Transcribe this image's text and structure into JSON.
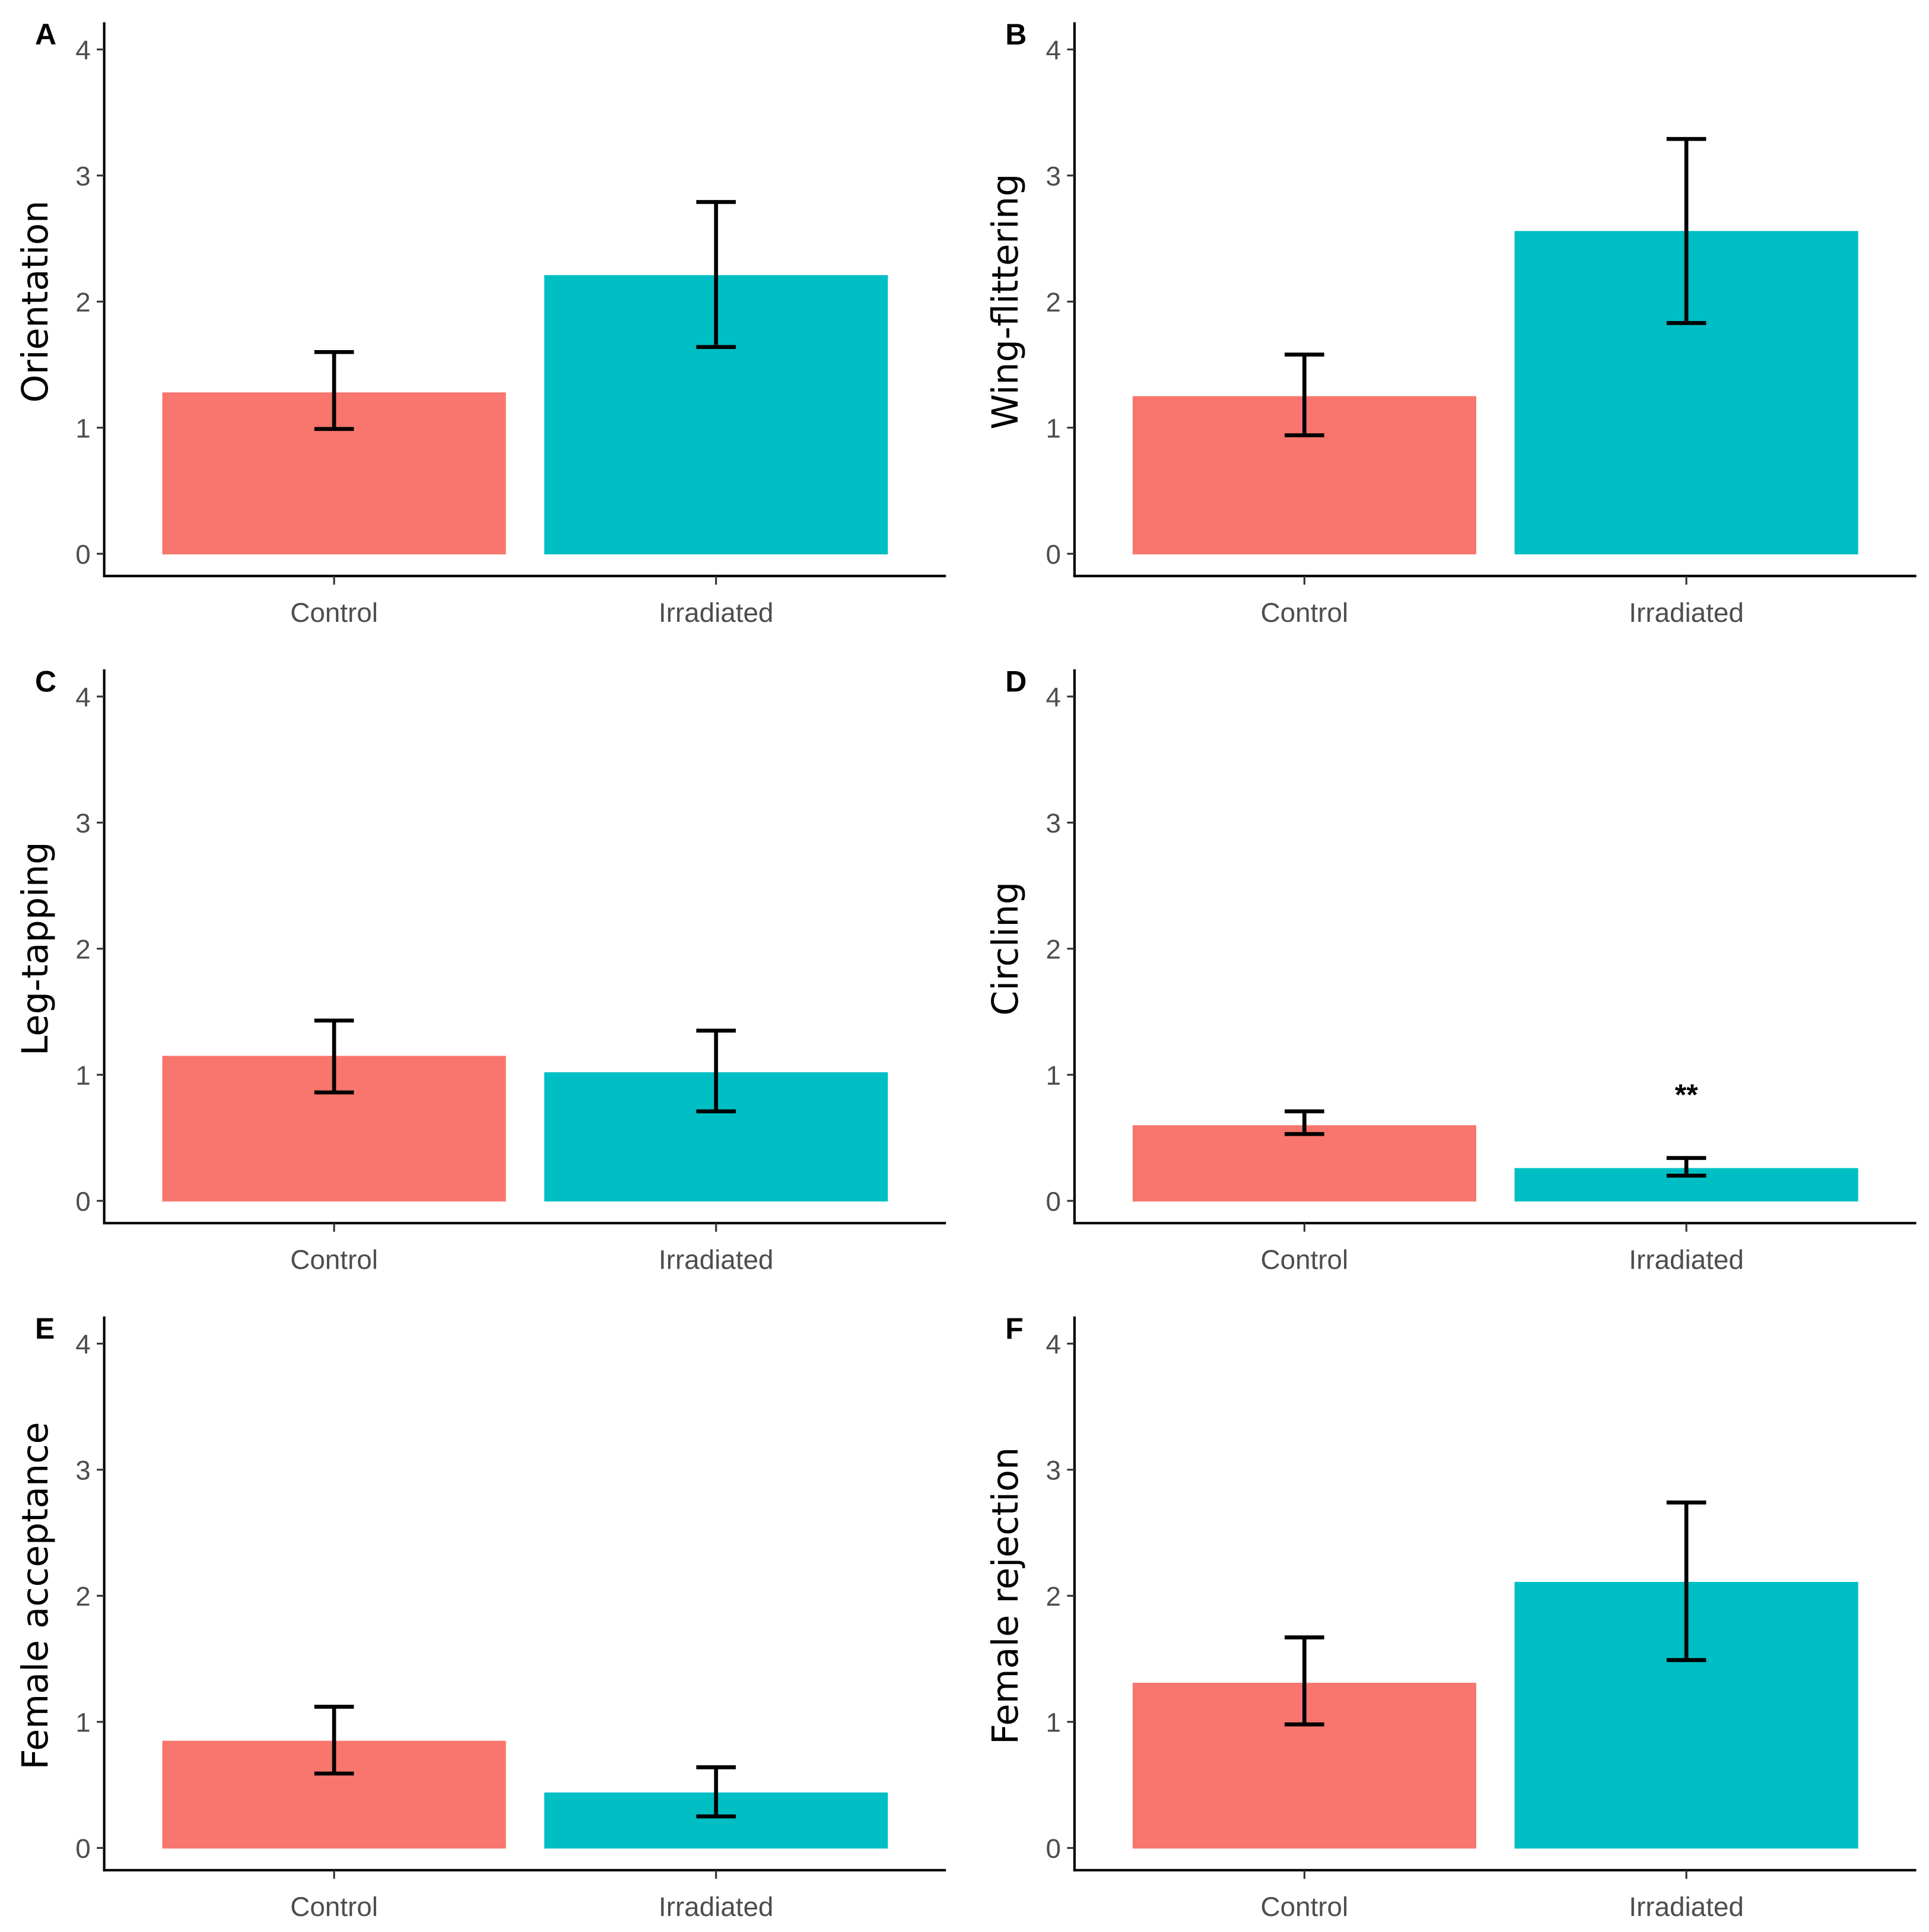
{
  "chart_data": [
    {
      "type": "bar",
      "panel": "A",
      "ylabel": "Orientation",
      "categories": [
        "Control",
        "Irradiated"
      ],
      "values": [
        1.28,
        2.21
      ],
      "error_low": [
        0.99,
        1.64
      ],
      "error_high": [
        1.6,
        2.79
      ],
      "colors": [
        "#F8766D",
        "#00BFC4"
      ],
      "ylim": [
        0,
        4
      ],
      "yticks": [
        "0",
        "1",
        "2",
        "3",
        "4"
      ],
      "annotation": ""
    },
    {
      "type": "bar",
      "panel": "B",
      "ylabel": "Wing-flittering",
      "categories": [
        "Control",
        "Irradiated"
      ],
      "values": [
        1.25,
        2.56
      ],
      "error_low": [
        0.94,
        1.83
      ],
      "error_high": [
        1.58,
        3.29
      ],
      "colors": [
        "#F8766D",
        "#00BFC4"
      ],
      "ylim": [
        0,
        4
      ],
      "yticks": [
        "0",
        "1",
        "2",
        "3",
        "4"
      ],
      "annotation": ""
    },
    {
      "type": "bar",
      "panel": "C",
      "ylabel": "Leg-tapping",
      "categories": [
        "Control",
        "Irradiated"
      ],
      "values": [
        1.15,
        1.02
      ],
      "error_low": [
        0.86,
        0.71
      ],
      "error_high": [
        1.43,
        1.35
      ],
      "colors": [
        "#F8766D",
        "#00BFC4"
      ],
      "ylim": [
        0,
        4
      ],
      "yticks": [
        "0",
        "1",
        "2",
        "3",
        "4"
      ],
      "annotation": ""
    },
    {
      "type": "bar",
      "panel": "D",
      "ylabel": "Circling",
      "categories": [
        "Control",
        "Irradiated"
      ],
      "values": [
        0.6,
        0.26
      ],
      "error_low": [
        0.53,
        0.2
      ],
      "error_high": [
        0.71,
        0.34
      ],
      "colors": [
        "#F8766D",
        "#00BFC4"
      ],
      "ylim": [
        0,
        4
      ],
      "yticks": [
        "0",
        "1",
        "2",
        "3",
        "4"
      ],
      "annotation": "**",
      "annotation_y": 0.86
    },
    {
      "type": "bar",
      "panel": "E",
      "ylabel": "Female acceptance",
      "categories": [
        "Control",
        "Irradiated"
      ],
      "values": [
        0.85,
        0.44
      ],
      "error_low": [
        0.59,
        0.25
      ],
      "error_high": [
        1.12,
        0.64
      ],
      "colors": [
        "#F8766D",
        "#00BFC4"
      ],
      "ylim": [
        0,
        4
      ],
      "yticks": [
        "0",
        "1",
        "2",
        "3",
        "4"
      ],
      "annotation": ""
    },
    {
      "type": "bar",
      "panel": "F",
      "ylabel": "Female rejection",
      "categories": [
        "Control",
        "Irradiated"
      ],
      "values": [
        1.31,
        2.11
      ],
      "error_low": [
        0.98,
        1.49
      ],
      "error_high": [
        1.67,
        2.74
      ],
      "colors": [
        "#F8766D",
        "#00BFC4"
      ],
      "ylim": [
        0,
        4
      ],
      "yticks": [
        "0",
        "1",
        "2",
        "3",
        "4"
      ],
      "annotation": ""
    }
  ]
}
